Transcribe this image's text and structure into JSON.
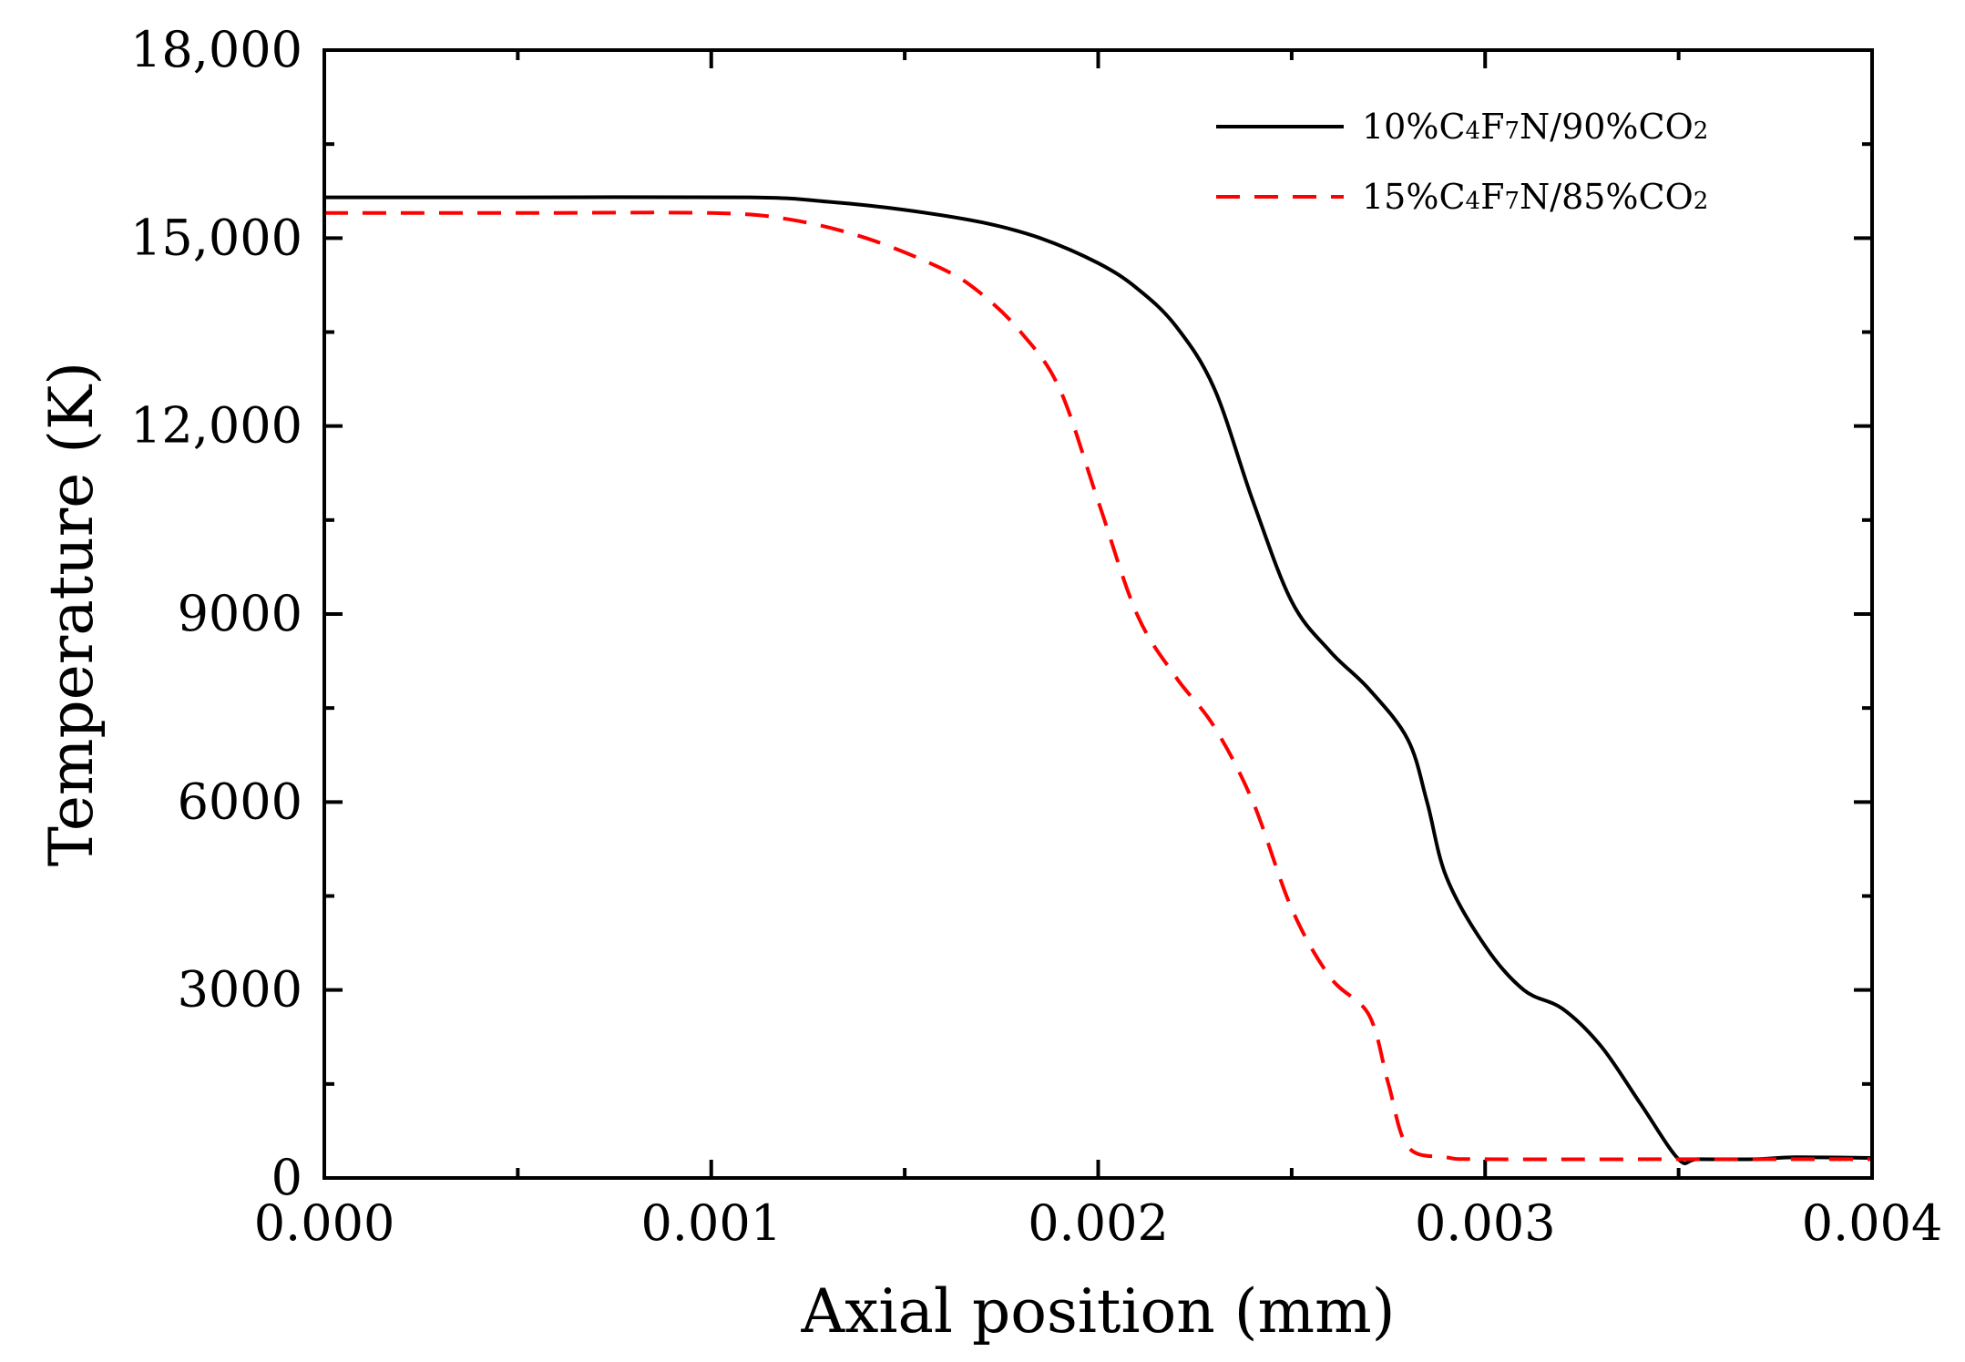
{
  "chart_data": {
    "type": "line",
    "title": "",
    "xlabel": "Axial position (mm)",
    "ylabel": "Temperature (K)",
    "xlim": [
      0,
      0.004
    ],
    "ylim": [
      0,
      18000
    ],
    "x_ticks": [
      0,
      0.001,
      0.002,
      0.003,
      0.004
    ],
    "x_tick_labels": [
      "0.000",
      "0.001",
      "0.002",
      "0.003",
      "0.004"
    ],
    "y_ticks": [
      0,
      3000,
      6000,
      9000,
      12000,
      15000,
      18000
    ],
    "y_tick_labels": [
      "0",
      "3000",
      "6000",
      "9000",
      "12,000",
      "15,000",
      "18,000"
    ],
    "x_minor_step": 0.0005,
    "y_minor_step": 1500,
    "grid": false,
    "legend_position": "top-right",
    "series": [
      {
        "name": "10%C4F7N/90%CO2",
        "legend_parts": [
          {
            "t": "10%C",
            "sub": false
          },
          {
            "t": "4",
            "sub": true
          },
          {
            "t": "F",
            "sub": false
          },
          {
            "t": "7",
            "sub": true
          },
          {
            "t": "N/90%CO",
            "sub": false
          },
          {
            "t": "2",
            "sub": true
          }
        ],
        "color": "#000000",
        "dash": "solid",
        "x": [
          0,
          0.0005,
          0.0011,
          0.0013,
          0.0015,
          0.0017,
          0.00185,
          0.002,
          0.0021,
          0.0022,
          0.0023,
          0.0024,
          0.0025,
          0.0026,
          0.0027,
          0.0028,
          0.00285,
          0.0029,
          0.003,
          0.0031,
          0.0032,
          0.0033,
          0.0034,
          0.0035,
          0.00355,
          0.0037,
          0.0038,
          0.004
        ],
        "y": [
          15650,
          15650,
          15650,
          15580,
          15450,
          15250,
          15000,
          14600,
          14200,
          13600,
          12600,
          10800,
          9200,
          8400,
          7800,
          7000,
          6000,
          4800,
          3700,
          3000,
          2700,
          2100,
          1200,
          300,
          300,
          300,
          330,
          320
        ]
      },
      {
        "name": "15%C4F7N/85%CO2",
        "legend_parts": [
          {
            "t": "15%C",
            "sub": false
          },
          {
            "t": "4",
            "sub": true
          },
          {
            "t": "F",
            "sub": false
          },
          {
            "t": "7",
            "sub": true
          },
          {
            "t": "N/85%CO",
            "sub": false
          },
          {
            "t": "2",
            "sub": true
          }
        ],
        "color": "#ff0000",
        "dash": "dashed",
        "x": [
          0,
          0.0005,
          0.001,
          0.0012,
          0.0014,
          0.0016,
          0.0017,
          0.0018,
          0.0019,
          0.002,
          0.0021,
          0.0022,
          0.0023,
          0.0024,
          0.0025,
          0.0026,
          0.0027,
          0.00275,
          0.0028,
          0.0029,
          0.003,
          0.0035,
          0.004
        ],
        "y": [
          15400,
          15400,
          15400,
          15300,
          15000,
          14500,
          14100,
          13500,
          12600,
          10800,
          9000,
          8000,
          7200,
          6000,
          4300,
          3200,
          2600,
          1500,
          500,
          330,
          300,
          300,
          300
        ]
      }
    ]
  }
}
